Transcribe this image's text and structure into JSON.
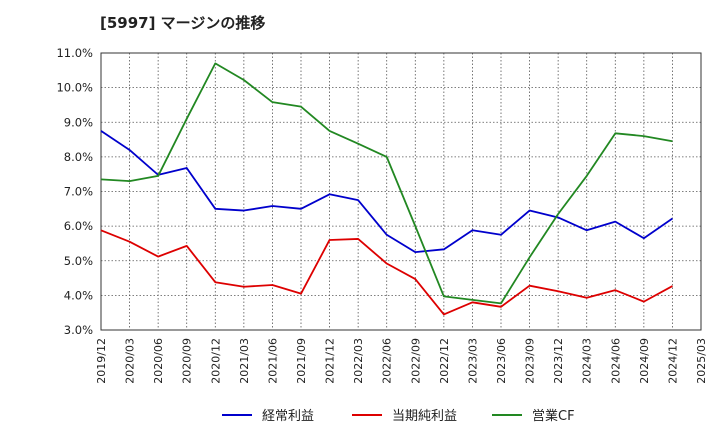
{
  "chart_data": {
    "type": "line",
    "title": "[5997]  マージンの推移",
    "xlabel": "",
    "ylabel": "",
    "ylim": [
      3.0,
      11.0
    ],
    "yticks": [
      "3.0%",
      "4.0%",
      "5.0%",
      "6.0%",
      "7.0%",
      "8.0%",
      "9.0%",
      "10.0%",
      "11.0%"
    ],
    "categories": [
      "2019/12",
      "2020/03",
      "2020/06",
      "2020/09",
      "2020/12",
      "2021/03",
      "2021/06",
      "2021/09",
      "2021/12",
      "2022/03",
      "2022/06",
      "2022/09",
      "2022/12",
      "2023/03",
      "2023/06",
      "2023/09",
      "2023/12",
      "2024/03",
      "2024/06",
      "2024/09",
      "2024/12",
      "2025/03"
    ],
    "grid": true,
    "legend_position": "bottom",
    "series": [
      {
        "name": "経常利益",
        "color": "#0000cc",
        "values": [
          8.75,
          8.2,
          7.48,
          7.68,
          6.5,
          6.45,
          6.58,
          6.5,
          6.92,
          6.75,
          5.75,
          5.25,
          5.33,
          5.88,
          5.75,
          6.45,
          6.25,
          5.88,
          6.13,
          5.65,
          6.22,
          null
        ]
      },
      {
        "name": "当期純利益",
        "color": "#dd0000",
        "values": [
          5.88,
          5.55,
          5.12,
          5.43,
          4.38,
          4.25,
          4.3,
          4.05,
          5.6,
          5.63,
          4.92,
          4.47,
          3.45,
          3.8,
          3.67,
          4.28,
          4.12,
          3.93,
          4.15,
          3.82,
          4.27,
          null
        ]
      },
      {
        "name": "営業CF",
        "color": "#228822",
        "values": [
          7.35,
          7.3,
          7.45,
          9.1,
          10.7,
          10.22,
          9.58,
          9.45,
          8.75,
          8.38,
          8.0,
          6.0,
          3.97,
          3.87,
          3.77,
          5.1,
          6.35,
          7.45,
          8.68,
          8.6,
          8.45,
          null
        ]
      }
    ]
  }
}
